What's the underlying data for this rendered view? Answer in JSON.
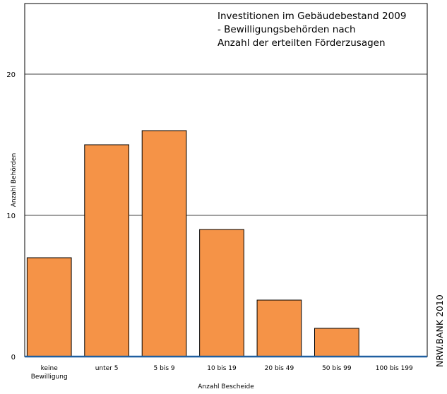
{
  "chart_data": {
    "type": "bar",
    "title": [
      "Investitionen im Gebäudebestand 2009",
      "- Bewilligungsbehörden nach",
      "Anzahl der erteilten Förderzusagen"
    ],
    "xlabel": "Anzahl Bescheide",
    "ylabel": "Anzahl Behörden",
    "categories": [
      [
        "keine",
        "Bewilligung"
      ],
      [
        "unter    5"
      ],
      [
        "5 bis  9"
      ],
      [
        "10 bis   19"
      ],
      [
        "20 bis   49"
      ],
      [
        "50 bis   99"
      ],
      [
        "100 bis 199"
      ]
    ],
    "values": [
      7,
      15,
      16,
      9,
      4,
      2,
      0
    ],
    "yticks": [
      0,
      10,
      20
    ],
    "ylim": [
      0,
      25
    ],
    "grid": true,
    "source": "NRW.BANK 2010",
    "colors": {
      "bar": "#f59347",
      "bar_edge": "#000000",
      "baseline": "#1f5fa0"
    }
  }
}
